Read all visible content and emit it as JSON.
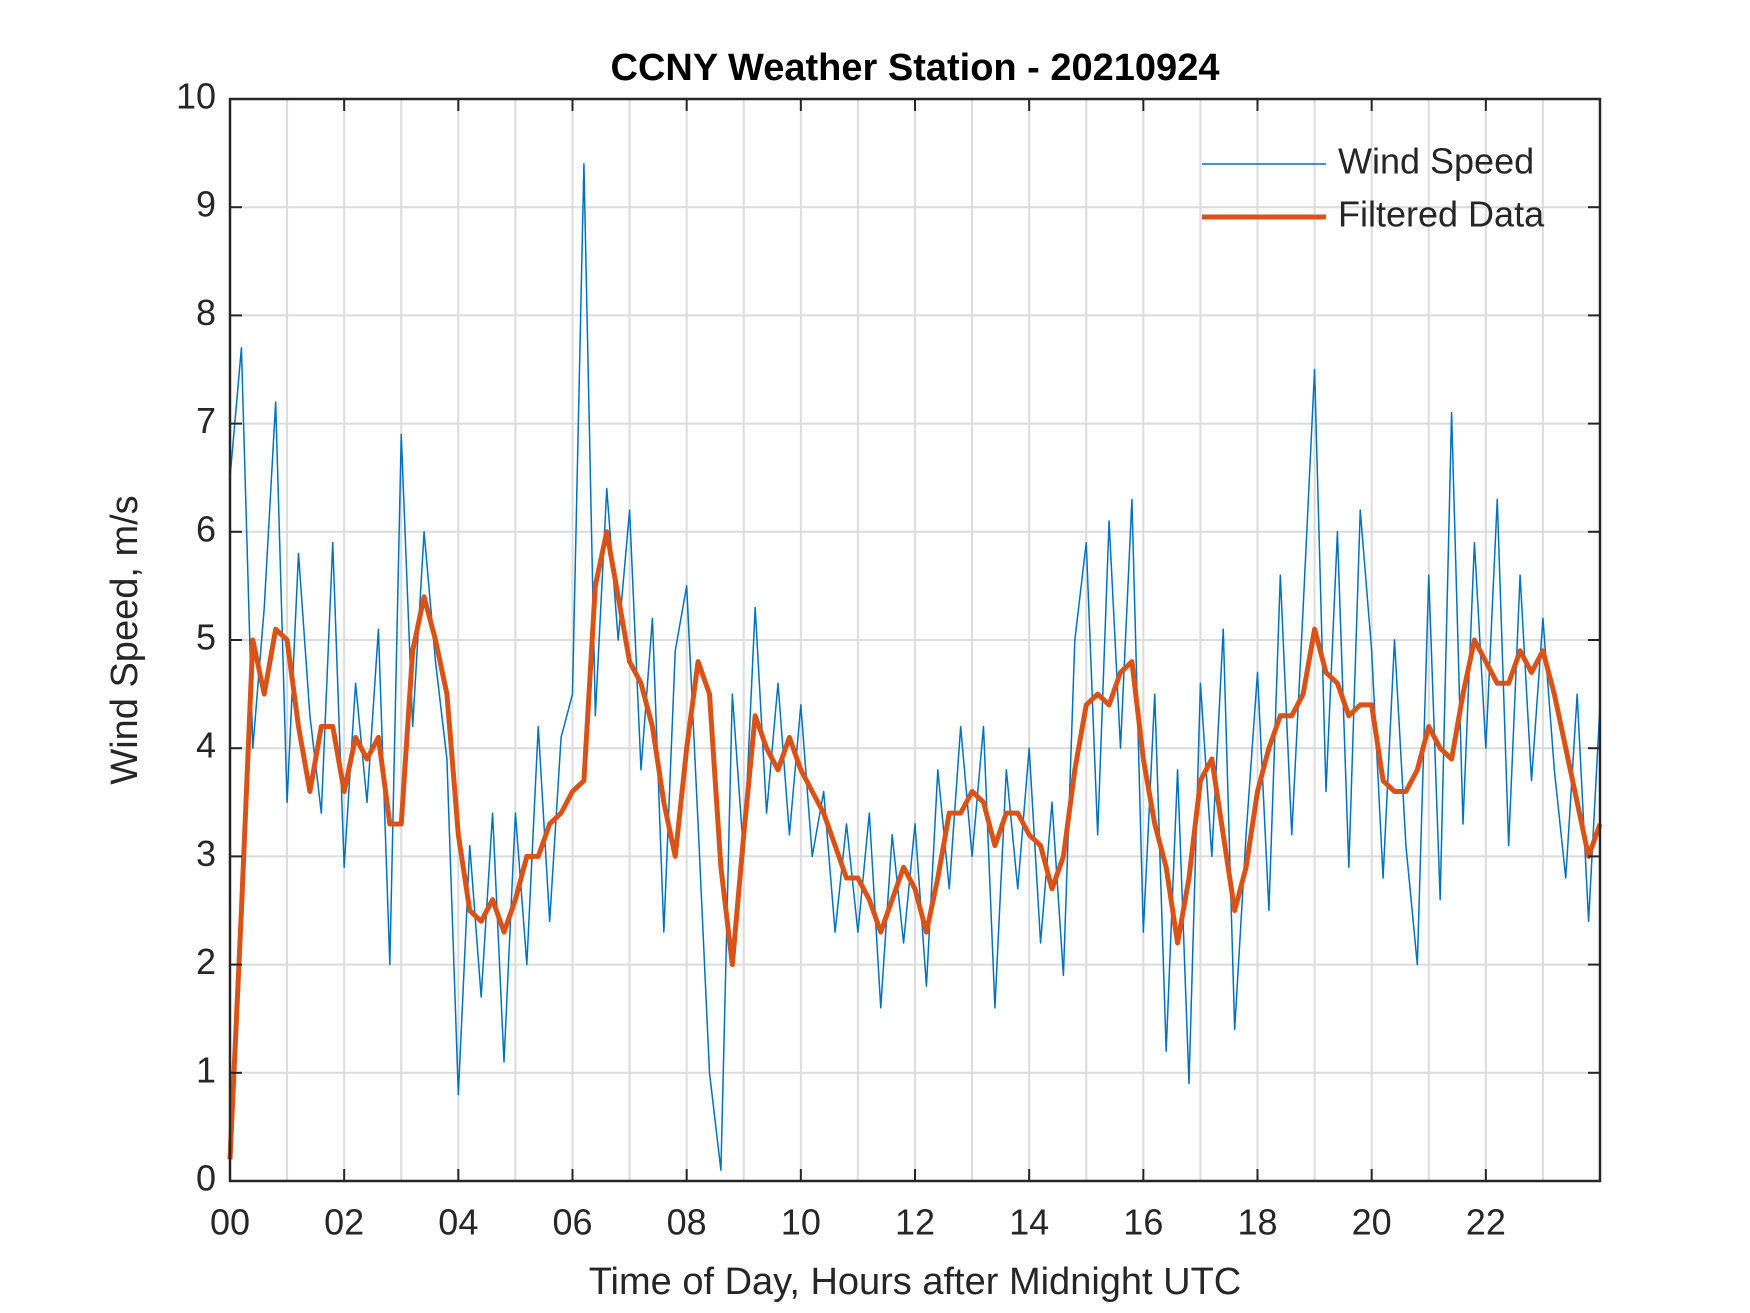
{
  "chart_data": {
    "type": "line",
    "title": "CCNY Weather Station - 20210924",
    "x_label": "Time of Day, Hours after Midnight UTC",
    "y_label": "Wind Speed, m/s",
    "x": [
      0,
      0.2,
      0.4,
      0.6,
      0.8,
      1,
      1.2,
      1.4,
      1.6,
      1.8,
      2,
      2.2,
      2.4,
      2.6,
      2.8,
      3,
      3.2,
      3.4,
      3.6,
      3.8,
      4,
      4.2,
      4.4,
      4.6,
      4.8,
      5,
      5.2,
      5.4,
      5.6,
      5.8,
      6,
      6.2,
      6.4,
      6.6,
      6.8,
      7,
      7.2,
      7.4,
      7.6,
      7.8,
      8,
      8.2,
      8.4,
      8.6,
      8.8,
      9,
      9.2,
      9.4,
      9.6,
      9.8,
      10,
      10.2,
      10.4,
      10.6,
      10.8,
      11,
      11.2,
      11.4,
      11.6,
      11.8,
      12,
      12.2,
      12.4,
      12.6,
      12.8,
      13,
      13.2,
      13.4,
      13.6,
      13.8,
      14,
      14.2,
      14.4,
      14.6,
      14.8,
      15,
      15.2,
      15.4,
      15.6,
      15.8,
      16,
      16.2,
      16.4,
      16.6,
      16.8,
      17,
      17.2,
      17.4,
      17.6,
      17.8,
      18,
      18.2,
      18.4,
      18.6,
      18.8,
      19,
      19.2,
      19.4,
      19.6,
      19.8,
      20,
      20.2,
      20.4,
      20.6,
      20.8,
      21,
      21.2,
      21.4,
      21.6,
      21.8,
      22,
      22.2,
      22.4,
      22.6,
      22.8,
      23,
      23.2,
      23.4,
      23.6,
      23.8,
      24
    ],
    "series": [
      {
        "name": "Wind Speed",
        "color": "#0072bd",
        "width": 1.5,
        "values": [
          6.5,
          7.7,
          4.0,
          5.3,
          7.2,
          3.5,
          5.8,
          4.3,
          3.4,
          5.9,
          2.9,
          4.6,
          3.5,
          5.1,
          2.0,
          6.9,
          4.2,
          6.0,
          4.8,
          3.9,
          0.8,
          3.1,
          1.7,
          3.4,
          1.1,
          3.4,
          2.0,
          4.2,
          2.4,
          4.1,
          4.5,
          9.4,
          4.3,
          6.4,
          5.0,
          6.2,
          3.8,
          5.2,
          2.3,
          4.9,
          5.5,
          3.3,
          1.0,
          0.1,
          4.5,
          3.0,
          5.3,
          3.4,
          4.6,
          3.2,
          4.4,
          3.0,
          3.6,
          2.3,
          3.3,
          2.3,
          3.4,
          1.6,
          3.2,
          2.2,
          3.3,
          1.8,
          3.8,
          2.7,
          4.2,
          3.0,
          4.2,
          1.6,
          3.8,
          2.7,
          4.0,
          2.2,
          3.5,
          1.9,
          5.0,
          5.9,
          3.2,
          6.1,
          4.0,
          6.3,
          2.3,
          4.5,
          1.2,
          3.8,
          0.9,
          4.6,
          3.0,
          5.1,
          1.4,
          3.2,
          4.7,
          2.5,
          5.6,
          3.2,
          5.3,
          7.5,
          3.6,
          6.0,
          2.9,
          6.2,
          4.9,
          2.8,
          5.0,
          3.1,
          2.0,
          5.6,
          2.6,
          7.1,
          3.3,
          5.9,
          4.0,
          6.3,
          3.1,
          5.6,
          3.7,
          5.2,
          3.8,
          2.8,
          4.5,
          2.4,
          4.4
        ]
      },
      {
        "name": "Filtered Data",
        "color": "#d95319",
        "width": 5,
        "values": [
          0.2,
          2.5,
          5.0,
          4.5,
          5.1,
          5.0,
          4.2,
          3.6,
          4.2,
          4.2,
          3.6,
          4.1,
          3.9,
          4.1,
          3.3,
          3.3,
          4.9,
          5.4,
          5.0,
          4.5,
          3.2,
          2.5,
          2.4,
          2.6,
          2.3,
          2.6,
          3.0,
          3.0,
          3.3,
          3.4,
          3.6,
          3.7,
          5.5,
          6.0,
          5.4,
          4.8,
          4.6,
          4.2,
          3.5,
          3.0,
          4.0,
          4.8,
          4.5,
          2.9,
          2.0,
          3.2,
          4.3,
          4.0,
          3.8,
          4.1,
          3.8,
          3.6,
          3.4,
          3.1,
          2.8,
          2.8,
          2.6,
          2.3,
          2.6,
          2.9,
          2.7,
          2.3,
          2.8,
          3.4,
          3.4,
          3.6,
          3.5,
          3.1,
          3.4,
          3.4,
          3.2,
          3.1,
          2.7,
          3.0,
          3.8,
          4.4,
          4.5,
          4.4,
          4.7,
          4.8,
          3.9,
          3.3,
          2.9,
          2.2,
          2.8,
          3.7,
          3.9,
          3.2,
          2.5,
          2.9,
          3.6,
          4.0,
          4.3,
          4.3,
          4.5,
          5.1,
          4.7,
          4.6,
          4.3,
          4.4,
          4.4,
          3.7,
          3.6,
          3.6,
          3.8,
          4.2,
          4.0,
          3.9,
          4.5,
          5.0,
          4.8,
          4.6,
          4.6,
          4.9,
          4.7,
          4.9,
          4.5,
          4.0,
          3.5,
          3.0,
          3.3
        ]
      }
    ],
    "xlim": [
      0,
      24
    ],
    "ylim": [
      0,
      10
    ],
    "xticks": [
      {
        "value": 0,
        "label": "00"
      },
      {
        "value": 2,
        "label": "02"
      },
      {
        "value": 4,
        "label": "04"
      },
      {
        "value": 6,
        "label": "06"
      },
      {
        "value": 8,
        "label": "08"
      },
      {
        "value": 10,
        "label": "10"
      },
      {
        "value": 12,
        "label": "12"
      },
      {
        "value": 14,
        "label": "14"
      },
      {
        "value": 16,
        "label": "16"
      },
      {
        "value": 18,
        "label": "18"
      },
      {
        "value": 20,
        "label": "20"
      },
      {
        "value": 22,
        "label": "22"
      }
    ],
    "x_minor_grid": [
      1,
      3,
      5,
      7,
      9,
      11,
      13,
      15,
      17,
      19,
      21,
      23
    ],
    "yticks": [
      0,
      1,
      2,
      3,
      4,
      5,
      6,
      7,
      8,
      9,
      10
    ],
    "grid": true,
    "legend": "upper-right"
  }
}
